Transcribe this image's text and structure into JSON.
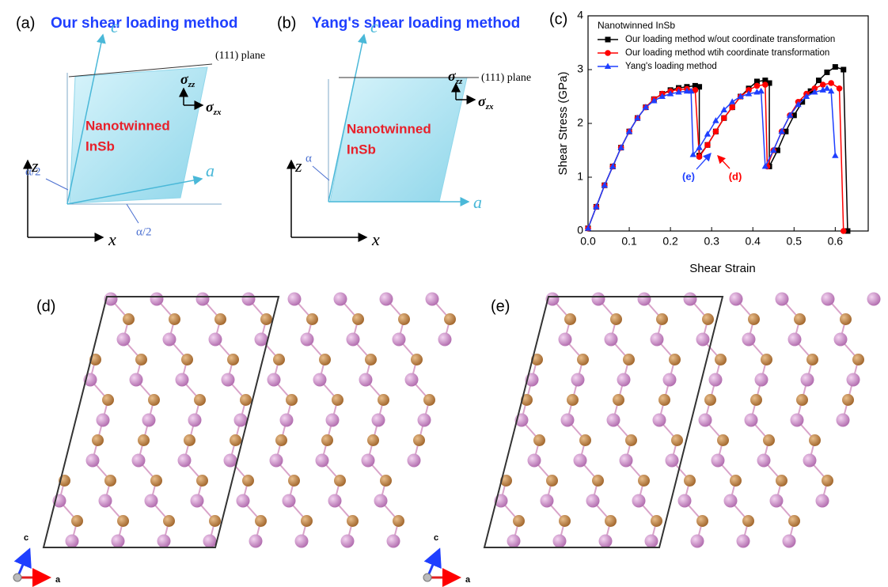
{
  "panel_a": {
    "label": "(a)",
    "title": "Our shear loading method",
    "plane": "(111) plane",
    "sigma_zz": {
      "base": "σ",
      "sub": "zz"
    },
    "sigma_zx": {
      "base": "σ",
      "sub": "zx"
    },
    "material": [
      "Nanotwinned",
      "InSb"
    ],
    "angle_left": "α/2",
    "angle_bottom": "α/2",
    "axis_c": "c",
    "axis_a": "a",
    "axis_z": "z",
    "axis_x": "x"
  },
  "panel_b": {
    "label": "(b)",
    "title": "Yang's shear loading method",
    "plane": "(111) plane",
    "sigma_zz": {
      "base": "σ",
      "sub": "zz"
    },
    "sigma_zx": {
      "base": "σ",
      "sub": "zx"
    },
    "material": [
      "Nanotwinned",
      "InSb"
    ],
    "angle_left": "α",
    "axis_c": "c",
    "axis_a": "a",
    "axis_z": "z",
    "axis_x": "x"
  },
  "chart_data": {
    "type": "line",
    "panel_label": "(c)",
    "xlabel": "Shear Strain",
    "ylabel": "Shear Stress (GPa)",
    "legend_title": "Nanotwinned InSb",
    "xlim": [
      0,
      0.68
    ],
    "xticks": [
      {
        "value": 0,
        "label": "0.0"
      },
      0.1,
      0.2,
      0.3,
      0.4,
      0.5,
      0.6
    ],
    "ylim": [
      0,
      4
    ],
    "yticks": [
      0,
      1,
      2,
      3,
      4
    ],
    "series": [
      {
        "name": "Our loading method w/out coordinate transformation",
        "color": "#000000",
        "marker": "square",
        "x": [
          0,
          0.02,
          0.04,
          0.06,
          0.08,
          0.1,
          0.12,
          0.14,
          0.16,
          0.18,
          0.2,
          0.22,
          0.24,
          0.26,
          0.27,
          0.27,
          0.29,
          0.31,
          0.33,
          0.35,
          0.37,
          0.39,
          0.41,
          0.43,
          0.44,
          0.44,
          0.46,
          0.48,
          0.5,
          0.52,
          0.54,
          0.56,
          0.58,
          0.6,
          0.62,
          0.63
        ],
        "values": [
          0.05,
          0.45,
          0.85,
          1.2,
          1.55,
          1.85,
          2.1,
          2.3,
          2.45,
          2.55,
          2.62,
          2.66,
          2.68,
          2.7,
          2.68,
          1.4,
          1.6,
          1.85,
          2.1,
          2.3,
          2.5,
          2.65,
          2.78,
          2.8,
          2.75,
          1.2,
          1.5,
          1.85,
          2.15,
          2.4,
          2.6,
          2.8,
          2.95,
          3.05,
          3.0,
          0
        ]
      },
      {
        "name": "Our loading method wtih coordinate transformation",
        "color": "#ff0000",
        "marker": "circle",
        "x": [
          0,
          0.02,
          0.04,
          0.06,
          0.08,
          0.1,
          0.12,
          0.14,
          0.16,
          0.18,
          0.2,
          0.22,
          0.24,
          0.26,
          0.27,
          0.29,
          0.31,
          0.33,
          0.35,
          0.37,
          0.39,
          0.41,
          0.43,
          0.435,
          0.45,
          0.47,
          0.49,
          0.51,
          0.53,
          0.55,
          0.57,
          0.59,
          0.61,
          0.62
        ],
        "values": [
          0.05,
          0.45,
          0.85,
          1.2,
          1.55,
          1.85,
          2.1,
          2.3,
          2.45,
          2.55,
          2.6,
          2.63,
          2.64,
          2.62,
          1.38,
          1.6,
          1.85,
          2.1,
          2.3,
          2.5,
          2.62,
          2.7,
          2.72,
          1.2,
          1.5,
          1.85,
          2.15,
          2.4,
          2.55,
          2.65,
          2.72,
          2.75,
          2.65,
          0
        ]
      },
      {
        "name": "Yang's loading method",
        "color": "#1f3fff",
        "marker": "triangle",
        "x": [
          0,
          0.02,
          0.04,
          0.06,
          0.08,
          0.1,
          0.12,
          0.14,
          0.16,
          0.18,
          0.2,
          0.22,
          0.24,
          0.25,
          0.255,
          0.27,
          0.29,
          0.31,
          0.33,
          0.35,
          0.37,
          0.39,
          0.41,
          0.42,
          0.43,
          0.45,
          0.47,
          0.49,
          0.51,
          0.53,
          0.55,
          0.57,
          0.58,
          0.59,
          0.6
        ],
        "values": [
          0.05,
          0.45,
          0.85,
          1.2,
          1.55,
          1.85,
          2.1,
          2.3,
          2.42,
          2.5,
          2.55,
          2.58,
          2.6,
          2.6,
          1.42,
          1.55,
          1.8,
          2.05,
          2.25,
          2.4,
          2.5,
          2.55,
          2.58,
          2.6,
          1.2,
          1.5,
          1.85,
          2.15,
          2.35,
          2.5,
          2.58,
          2.62,
          2.65,
          2.6,
          1.4
        ]
      }
    ],
    "annotations": [
      {
        "text": "(e)",
        "color": "#1f3fff"
      },
      {
        "text": "(d)",
        "color": "#ff0000"
      }
    ]
  },
  "panel_d": {
    "label": "(d)",
    "axis_c": "c",
    "axis_a": "a"
  },
  "panel_e": {
    "label": "(e)",
    "axis_c": "c",
    "axis_a": "a"
  }
}
